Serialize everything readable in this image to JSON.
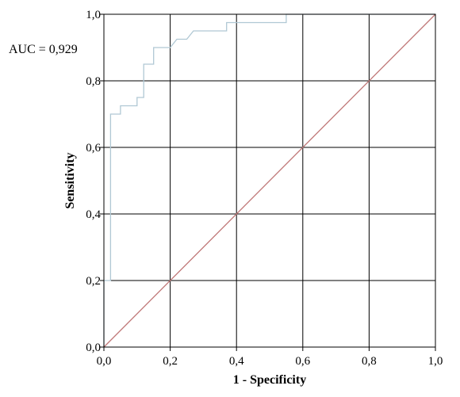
{
  "chart_data": {
    "type": "line",
    "title": "",
    "xlabel": "1 - Specificity",
    "ylabel": "Sensitivity",
    "xlim": [
      0,
      1
    ],
    "ylim": [
      0,
      1
    ],
    "x_ticks": [
      "0,0",
      "0,2",
      "0,4",
      "0,6",
      "0,8",
      "1,0"
    ],
    "y_ticks": [
      "0,0",
      "0,2",
      "0,4",
      "0,6",
      "0,8",
      "1,0"
    ],
    "grid": true,
    "legend": "none",
    "annotation": "AUC = 0,929",
    "series": [
      {
        "color": "#b0c8d4",
        "points": [
          [
            0,
            0
          ],
          [
            0,
            0.2
          ],
          [
            0.02,
            0.2
          ],
          [
            0.02,
            0.7
          ],
          [
            0.05,
            0.7
          ],
          [
            0.05,
            0.725
          ],
          [
            0.1,
            0.725
          ],
          [
            0.1,
            0.75
          ],
          [
            0.12,
            0.75
          ],
          [
            0.12,
            0.85
          ],
          [
            0.15,
            0.85
          ],
          [
            0.15,
            0.9
          ],
          [
            0.2,
            0.9
          ],
          [
            0.22,
            0.925
          ],
          [
            0.25,
            0.925
          ],
          [
            0.27,
            0.95
          ],
          [
            0.37,
            0.95
          ],
          [
            0.37,
            0.975
          ],
          [
            0.55,
            0.975
          ],
          [
            0.55,
            1.0
          ],
          [
            1.0,
            1.0
          ]
        ]
      },
      {
        "color": "#c07878",
        "points": [
          [
            0,
            0
          ],
          [
            1,
            1
          ]
        ]
      }
    ]
  }
}
